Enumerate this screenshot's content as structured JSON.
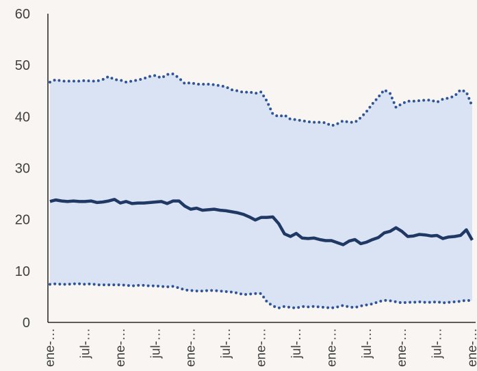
{
  "chart_data": {
    "type": "band-line",
    "categories": [
      "ene-…",
      null,
      null,
      null,
      null,
      null,
      "jul-…",
      null,
      null,
      null,
      null,
      null,
      "ene-…",
      null,
      null,
      null,
      null,
      null,
      "jul-…",
      null,
      null,
      null,
      null,
      null,
      "ene-…",
      null,
      null,
      null,
      null,
      null,
      "jul-…",
      null,
      null,
      null,
      null,
      null,
      "ene-…",
      null,
      null,
      null,
      null,
      null,
      "jul-…",
      null,
      null,
      null,
      null,
      null,
      "ene-…",
      null,
      null,
      null,
      null,
      null,
      "jul-…",
      null,
      null,
      null,
      null,
      null,
      "ene-…",
      null,
      null,
      null,
      null,
      null,
      "jul-…",
      null,
      null,
      null,
      null,
      null,
      "ene-…"
    ],
    "series": [
      {
        "color": "#203864",
        "style": "solid",
        "values": [
          23.5,
          23.8,
          23.6,
          23.5,
          23.6,
          23.5,
          23.5,
          23.6,
          23.3,
          23.4,
          23.6,
          23.9,
          23.2,
          23.5,
          23.1,
          23.2,
          23.2,
          23.3,
          23.4,
          23.5,
          23.1,
          23.6,
          23.6,
          22.6,
          22.0,
          22.2,
          21.8,
          21.9,
          22.0,
          21.8,
          21.7,
          21.5,
          21.3,
          21.0,
          20.5,
          19.9,
          20.4,
          20.4,
          20.5,
          19.2,
          17.2,
          16.7,
          17.3,
          16.4,
          16.3,
          16.4,
          16.1,
          15.9,
          15.9,
          15.5,
          15.1,
          15.8,
          16.1,
          15.3,
          15.6,
          16.1,
          16.5,
          17.4,
          17.7,
          18.4,
          17.7,
          16.7,
          16.8,
          17.1,
          17.0,
          16.8,
          16.9,
          16.3,
          16.6,
          16.7,
          16.9,
          18.0,
          16.0
        ]
      },
      {
        "color": "#2f5597",
        "style": "dotted",
        "values": [
          46.7,
          47.2,
          46.9,
          46.9,
          46.9,
          46.9,
          47.0,
          46.9,
          46.9,
          47.2,
          47.8,
          47.2,
          47.1,
          46.7,
          46.9,
          47.1,
          47.4,
          47.8,
          48.0,
          47.5,
          48.2,
          48.3,
          47.5,
          46.4,
          46.6,
          46.3,
          46.3,
          46.3,
          46.2,
          46.0,
          45.8,
          45.2,
          45.0,
          44.7,
          44.8,
          44.5,
          44.8,
          43.0,
          40.5,
          40.0,
          40.3,
          39.5,
          39.4,
          39.2,
          39.0,
          38.9,
          38.9,
          38.8,
          38.2,
          38.6,
          39.2,
          38.9,
          38.9,
          39.8,
          41.0,
          42.5,
          43.8,
          45.2,
          44.5,
          41.8,
          42.5,
          43.0,
          43.0,
          43.1,
          43.2,
          43.2,
          42.8,
          43.4,
          43.6,
          44.0,
          45.2,
          44.8,
          42.0
        ]
      },
      {
        "color": "#2f5597",
        "style": "dotted",
        "values": [
          7.4,
          7.5,
          7.4,
          7.4,
          7.5,
          7.5,
          7.4,
          7.5,
          7.3,
          7.3,
          7.3,
          7.3,
          7.3,
          7.2,
          7.1,
          7.2,
          7.2,
          7.1,
          7.1,
          7.0,
          6.9,
          7.0,
          6.7,
          6.3,
          6.2,
          6.1,
          6.1,
          6.2,
          6.2,
          6.1,
          6.0,
          5.9,
          5.7,
          5.4,
          5.5,
          5.6,
          5.6,
          4.0,
          3.2,
          2.8,
          3.1,
          2.9,
          2.8,
          3.1,
          3.0,
          3.1,
          3.0,
          2.9,
          2.8,
          3.0,
          3.3,
          3.0,
          2.9,
          3.2,
          3.4,
          3.6,
          4.0,
          4.3,
          4.2,
          4.0,
          3.8,
          3.9,
          3.9,
          4.0,
          3.9,
          3.9,
          4.0,
          3.8,
          3.9,
          4.0,
          4.1,
          4.3,
          4.2
        ]
      }
    ],
    "band_color": "#dae3f3",
    "ylim": [
      0,
      60
    ],
    "yticks": [
      0,
      10,
      20,
      30,
      40,
      50,
      60
    ]
  }
}
